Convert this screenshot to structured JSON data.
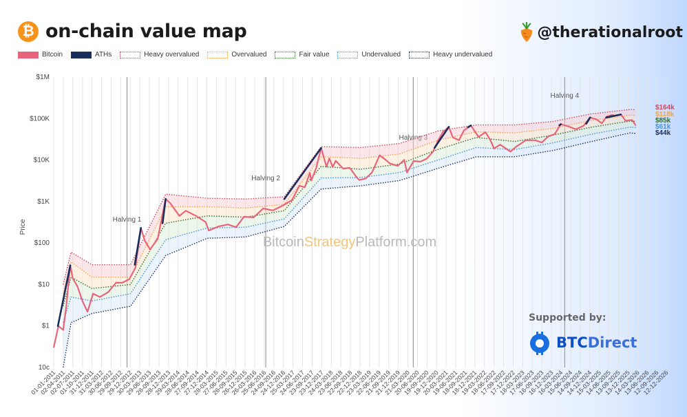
{
  "header": {
    "title": "on-chain value map",
    "logo_symbol": "₿",
    "handle": "@therationalroot"
  },
  "legend": [
    {
      "label": "Bitcoin",
      "color": "#e8647a",
      "style": "solid"
    },
    {
      "label": "ATHs",
      "color": "#1a2d5a",
      "style": "solid"
    },
    {
      "label": "Heavy overvalued",
      "color": "#c94b63",
      "style": "dotted"
    },
    {
      "label": "Overvalued",
      "color": "#f0a450",
      "style": "dotted"
    },
    {
      "label": "Fair value",
      "color": "#2f6b2a",
      "style": "dotted"
    },
    {
      "label": "Undervalued",
      "color": "#4b8fd6",
      "style": "dotted"
    },
    {
      "label": "Heavy undervalued",
      "color": "#1d2c5c",
      "style": "dotted"
    }
  ],
  "watermark": {
    "part1": "Bitcoin",
    "part2": "Strategy",
    "part3": "Platform.com"
  },
  "supported": {
    "label": "Supported by:",
    "brand_a": "BTC",
    "brand_b": "Direct"
  },
  "chart_data": {
    "type": "line",
    "yscale": "log",
    "ylabel": "Price",
    "ylim": [
      0.1,
      1000000
    ],
    "xlim": [
      "2011-01-01",
      "2026-12-12"
    ],
    "y_ticks": [
      {
        "value": 1000000,
        "label": "$1M"
      },
      {
        "value": 100000,
        "label": "$100K"
      },
      {
        "value": 10000,
        "label": "$10K"
      },
      {
        "value": 1000,
        "label": "$1K"
      },
      {
        "value": 100,
        "label": "$100"
      },
      {
        "value": 10,
        "label": "$10"
      },
      {
        "value": 1,
        "label": "$1"
      },
      {
        "value": 0.1,
        "label": "10c"
      }
    ],
    "x_tick_labels": [
      "01-01-2011",
      "02-04-2011",
      "02-07-2011",
      "01-10-2011",
      "31-12-2011",
      "31-03-2012",
      "30-06-2012",
      "29-09-2012",
      "29-12-2012",
      "30-03-2013",
      "29-06-2013",
      "28-09-2013",
      "28-12-2013",
      "29-03-2014",
      "28-06-2014",
      "27-09-2014",
      "27-12-2014",
      "28-03-2015",
      "27-06-2015",
      "26-09-2015",
      "26-12-2015",
      "26-03-2016",
      "25-06-2016",
      "24-09-2016",
      "24-12-2016",
      "25-03-2017",
      "24-06-2017",
      "23-09-2017",
      "23-12-2017",
      "24-03-2018",
      "23-06-2018",
      "22-09-2018",
      "22-12-2018",
      "23-03-2019",
      "22-06-2019",
      "21-09-2019",
      "21-12-2019",
      "21-03-2020",
      "20-06-2020",
      "19-09-2020",
      "19-12-2020",
      "20-03-2021",
      "19-06-2021",
      "18-09-2021",
      "18-12-2021",
      "19-03-2022",
      "18-06-2022",
      "17-09-2022",
      "17-12-2022",
      "18-03-2023",
      "17-06-2023",
      "16-09-2023",
      "16-12-2023",
      "16-03-2024",
      "15-06-2024",
      "14-09-2024",
      "14-12-2024",
      "15-03-2025",
      "14-06-2025",
      "13-09-2025",
      "13-12-2025",
      "14-03-2026",
      "13-06-2026",
      "12-09-2026",
      "12-12-2026"
    ],
    "halvings": [
      {
        "label": "Halving 1",
        "date": "2012-11-28"
      },
      {
        "label": "Halving 2",
        "date": "2016-07-09"
      },
      {
        "label": "Halving 3",
        "date": "2020-05-11"
      },
      {
        "label": "Halving 4",
        "date": "2024-04-20"
      }
    ],
    "end_labels": [
      {
        "label": "$164k",
        "value": 164000,
        "color": "#c94b63"
      },
      {
        "label": "$118k",
        "value": 118000,
        "color": "#f0a450"
      },
      {
        "label": "$85k",
        "value": 85000,
        "color": "#2f6b2a"
      },
      {
        "label": "$61k",
        "value": 61000,
        "color": "#4b8fd6"
      },
      {
        "label": "$44k",
        "value": 44000,
        "color": "#1d2c5c"
      }
    ],
    "price": {
      "name": "Bitcoin",
      "x": [
        "2011-01-01",
        "2011-02-15",
        "2011-04-01",
        "2011-05-01",
        "2011-06-08",
        "2011-07-01",
        "2011-08-15",
        "2011-10-01",
        "2011-11-18",
        "2012-01-10",
        "2012-03-15",
        "2012-06-01",
        "2012-08-15",
        "2012-10-15",
        "2012-12-20",
        "2013-02-15",
        "2013-04-09",
        "2013-05-15",
        "2013-07-05",
        "2013-09-15",
        "2013-11-30",
        "2014-01-15",
        "2014-04-10",
        "2014-06-10",
        "2014-09-15",
        "2014-12-15",
        "2015-01-14",
        "2015-04-15",
        "2015-07-15",
        "2015-10-01",
        "2015-12-15",
        "2016-03-15",
        "2016-06-15",
        "2016-09-15",
        "2016-12-15",
        "2017-03-15",
        "2017-05-25",
        "2017-07-15",
        "2017-09-01",
        "2017-09-15",
        "2017-11-01",
        "2017-12-17",
        "2018-02-06",
        "2018-03-05",
        "2018-04-06",
        "2018-05-05",
        "2018-07-15",
        "2018-09-15",
        "2018-11-25",
        "2018-12-15",
        "2019-02-15",
        "2019-04-15",
        "2019-06-26",
        "2019-08-15",
        "2019-10-01",
        "2019-12-15",
        "2020-02-15",
        "2020-03-13",
        "2020-05-15",
        "2020-07-15",
        "2020-09-15",
        "2020-11-15",
        "2020-12-31",
        "2021-02-15",
        "2021-04-14",
        "2021-05-23",
        "2021-07-20",
        "2021-09-06",
        "2021-11-10",
        "2022-01-22",
        "2022-03-28",
        "2022-05-15",
        "2022-06-18",
        "2022-08-15",
        "2022-11-21",
        "2023-01-15",
        "2023-04-15",
        "2023-07-15",
        "2023-09-15",
        "2023-11-15",
        "2024-01-15",
        "2024-03-14",
        "2024-05-15",
        "2024-08-05",
        "2024-10-15",
        "2024-12-17",
        "2025-02-15",
        "2025-04-08",
        "2025-05-22",
        "2025-07-14",
        "2025-08-15",
        "2025-10-06",
        "2025-11-20",
        "2025-12-15",
        "2026-01-20",
        "2026-02-25"
      ],
      "y": [
        0.3,
        1.0,
        0.8,
        3.0,
        29,
        14,
        9,
        4,
        2.2,
        6,
        5,
        6.5,
        11,
        11,
        13.5,
        25,
        230,
        115,
        70,
        125,
        1150,
        900,
        450,
        600,
        450,
        320,
        200,
        250,
        280,
        240,
        430,
        415,
        680,
        610,
        790,
        1080,
        2400,
        2200,
        4900,
        3200,
        6500,
        19500,
        6900,
        11000,
        6800,
        9600,
        6200,
        6500,
        3700,
        3300,
        3600,
        5000,
        13000,
        10500,
        8300,
        7200,
        10100,
        5000,
        9500,
        9100,
        10700,
        16000,
        29000,
        47000,
        63000,
        35000,
        30000,
        52000,
        68000,
        36000,
        47000,
        30000,
        19000,
        23500,
        16000,
        21000,
        30000,
        30000,
        26500,
        37000,
        42000,
        73000,
        66000,
        55000,
        67000,
        106000,
        96000,
        76500,
        111000,
        122000,
        117000,
        125000,
        88000,
        90000,
        92000,
        68000
      ]
    },
    "aths": {
      "name": "ATHs",
      "segments": [
        {
          "x": [
            "2011-02-10",
            "2011-06-08"
          ],
          "y": [
            1.0,
            29
          ]
        },
        {
          "x": [
            "2013-02-10",
            "2013-04-09"
          ],
          "y": [
            30,
            230
          ]
        },
        {
          "x": [
            "2013-11-01",
            "2013-11-30"
          ],
          "y": [
            300,
            1150
          ]
        },
        {
          "x": [
            "2017-01-01",
            "2017-12-17"
          ],
          "y": [
            1150,
            19500
          ]
        },
        {
          "x": [
            "2020-11-30",
            "2021-04-14"
          ],
          "y": [
            19700,
            63000
          ]
        },
        {
          "x": [
            "2021-10-15",
            "2021-11-10"
          ],
          "y": [
            62000,
            68000
          ]
        },
        {
          "x": [
            "2024-03-01",
            "2024-03-14"
          ],
          "y": [
            69000,
            73000
          ]
        },
        {
          "x": [
            "2024-11-10",
            "2024-12-17"
          ],
          "y": [
            75000,
            106000
          ]
        },
        {
          "x": [
            "2025-05-20",
            "2025-10-06"
          ],
          "y": [
            106000,
            125000
          ]
        }
      ]
    },
    "bands": [
      {
        "name": "Heavy overvalued",
        "color": "#c94b63",
        "x": [
          "2011-04-01",
          "2011-06-15",
          "2011-12-31",
          "2012-12-31",
          "2013-12-01",
          "2014-12-31",
          "2015-12-31",
          "2016-12-31",
          "2017-12-17",
          "2018-12-31",
          "2019-12-31",
          "2020-12-31",
          "2021-12-31",
          "2022-12-31",
          "2023-12-31",
          "2024-12-31",
          "2025-12-31",
          "2026-02-25"
        ],
        "y": [
          10,
          60,
          30,
          30,
          1500,
          1200,
          1150,
          1300,
          21000,
          20000,
          25000,
          50000,
          70000,
          70000,
          85000,
          130000,
          165000,
          164000
        ]
      },
      {
        "name": "Overvalued",
        "color": "#f0a450",
        "x": [
          "2011-04-01",
          "2011-06-15",
          "2011-12-31",
          "2012-12-31",
          "2013-12-01",
          "2014-12-31",
          "2015-12-31",
          "2016-12-31",
          "2017-12-17",
          "2018-12-31",
          "2019-12-31",
          "2020-12-31",
          "2021-12-31",
          "2022-12-31",
          "2023-12-31",
          "2024-12-31",
          "2025-12-31",
          "2026-02-25"
        ],
        "y": [
          6,
          35,
          15,
          15,
          750,
          750,
          700,
          850,
          12000,
          11000,
          14000,
          30000,
          48000,
          45000,
          58000,
          90000,
          120000,
          118000
        ]
      },
      {
        "name": "Fair value",
        "color": "#2f6b2a",
        "x": [
          "2011-04-01",
          "2011-06-15",
          "2011-12-31",
          "2012-12-31",
          "2013-12-01",
          "2014-12-31",
          "2015-12-31",
          "2016-12-31",
          "2017-12-17",
          "2018-12-31",
          "2019-12-31",
          "2020-12-31",
          "2021-12-31",
          "2022-12-31",
          "2023-12-31",
          "2024-12-31",
          "2025-12-31",
          "2026-02-25"
        ],
        "y": [
          3,
          15,
          8,
          10,
          300,
          450,
          420,
          600,
          7000,
          6000,
          8000,
          18000,
          35000,
          28000,
          40000,
          62000,
          87000,
          85000
        ]
      },
      {
        "name": "Undervalued",
        "color": "#4b8fd6",
        "x": [
          "2011-04-01",
          "2011-06-15",
          "2011-12-31",
          "2012-12-31",
          "2013-12-01",
          "2014-12-31",
          "2015-12-31",
          "2016-12-31",
          "2017-12-17",
          "2018-12-31",
          "2019-12-31",
          "2020-12-31",
          "2021-12-31",
          "2022-12-31",
          "2023-12-31",
          "2024-12-31",
          "2025-12-31",
          "2026-02-25"
        ],
        "y": [
          1.2,
          5,
          4,
          6,
          120,
          230,
          240,
          380,
          3700,
          3800,
          5000,
          10000,
          20000,
          18000,
          26000,
          42000,
          62000,
          61000
        ]
      },
      {
        "name": "Heavy undervalued",
        "color": "#1d2c5c",
        "x": [
          "2011-04-01",
          "2011-06-15",
          "2011-12-31",
          "2012-12-31",
          "2013-12-01",
          "2014-12-31",
          "2015-12-31",
          "2016-12-31",
          "2017-12-17",
          "2018-12-31",
          "2019-12-31",
          "2020-12-31",
          "2021-12-31",
          "2022-12-31",
          "2023-12-31",
          "2024-12-31",
          "2025-12-31",
          "2026-02-25"
        ],
        "y": [
          0.1,
          1.2,
          2,
          3,
          50,
          130,
          140,
          250,
          2000,
          2400,
          3200,
          6300,
          12000,
          12000,
          17000,
          28000,
          45000,
          44000
        ]
      }
    ]
  }
}
